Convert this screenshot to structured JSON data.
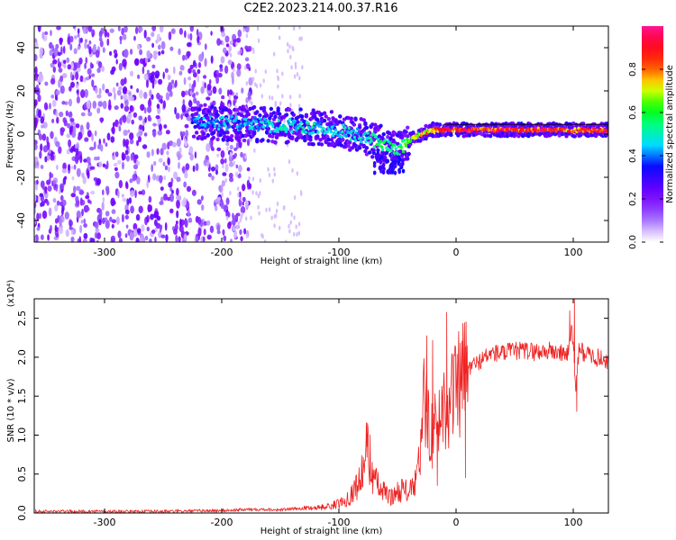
{
  "title": "C2E2.2023.214.00.37.R16",
  "chart_data": [
    {
      "type": "heatmap",
      "xlabel": "Height of straight line (km)",
      "ylabel": "Frequency (Hz)",
      "xlim": [
        -360,
        130
      ],
      "ylim": [
        -50,
        50
      ],
      "xticks": [
        -300,
        -200,
        -100,
        0,
        100
      ],
      "yticks": [
        -40,
        -20,
        0,
        20,
        40
      ],
      "colorbar": {
        "label": "Normalized spectral amplitude",
        "range": [
          0.0,
          1.0
        ],
        "ticks": [
          0.0,
          0.2,
          0.4,
          0.6,
          0.8
        ],
        "colormap": [
          "#ffffff",
          "#7f00ff",
          "#0000ff",
          "#00ffff",
          "#00ff00",
          "#ffff00",
          "#ff0000",
          "#ff1493"
        ]
      },
      "ridge": {
        "x": [
          -225,
          -200,
          -180,
          -160,
          -140,
          -120,
          -100,
          -90,
          -80,
          -70,
          -60,
          -50,
          -45,
          -40,
          -30,
          -20,
          -10,
          0,
          20,
          50,
          90,
          100,
          110,
          130
        ],
        "y": [
          6,
          5,
          5,
          4,
          4,
          3,
          2,
          0,
          -1,
          -3,
          -5,
          -7,
          -6,
          -3,
          0,
          2,
          2,
          2,
          2,
          2,
          2,
          2,
          2,
          2
        ],
        "amplitude": [
          0.4,
          0.45,
          0.45,
          0.5,
          0.5,
          0.5,
          0.45,
          0.5,
          0.5,
          0.55,
          0.55,
          0.55,
          0.6,
          0.65,
          0.75,
          0.85,
          0.9,
          0.9,
          0.92,
          0.92,
          0.92,
          0.85,
          0.92,
          0.92
        ]
      },
      "noise_region_x": [
        -360,
        -195
      ],
      "noise_amplitude": 0.15
    },
    {
      "type": "line",
      "xlabel": "Height of straight line (km)",
      "ylabel": "SNR (10 * v/v)",
      "y_multiplier": "(x10⁴)",
      "xlim": [
        -360,
        130
      ],
      "ylim": [
        0,
        2.75
      ],
      "xticks": [
        -300,
        -200,
        -100,
        0,
        100
      ],
      "yticks": [
        0.0,
        0.5,
        1.0,
        1.5,
        2.0,
        2.5
      ],
      "ytick_labels": [
        "0.0",
        "0.5",
        "1.0",
        "1.5",
        "2.0",
        "2.5"
      ],
      "color": "#ee2222",
      "series": [
        {
          "x": [
            -360,
            -300,
            -250,
            -200,
            -170,
            -150,
            -130,
            -110,
            -100,
            -90,
            -85,
            -80,
            -76,
            -70,
            -65,
            -60,
            -55,
            -50,
            -45,
            -40,
            -35,
            -30,
            -27,
            -25,
            -20,
            -15,
            -10,
            -5,
            0,
            5,
            10,
            20,
            30,
            40,
            50,
            60,
            70,
            80,
            90,
            95,
            98,
            100,
            102,
            105,
            110,
            120,
            130
          ],
          "y": [
            0.02,
            0.02,
            0.02,
            0.03,
            0.05,
            0.04,
            0.06,
            0.08,
            0.12,
            0.22,
            0.35,
            0.5,
            0.85,
            0.45,
            0.3,
            0.25,
            0.2,
            0.28,
            0.3,
            0.28,
            0.35,
            0.8,
            1.5,
            1.3,
            1.0,
            1.2,
            1.4,
            1.5,
            1.55,
            1.7,
            1.85,
            1.95,
            2.05,
            2.05,
            2.08,
            2.08,
            2.07,
            2.08,
            2.05,
            2.05,
            2.3,
            2.25,
            1.6,
            2.1,
            2.05,
            2.0,
            1.95
          ]
        }
      ],
      "spikes": [
        {
          "x": -76,
          "y": 1.02
        },
        {
          "x": -35,
          "y": 0.55
        },
        {
          "x": -25,
          "y": 2.28
        },
        {
          "x": -20,
          "y": 2.22
        },
        {
          "x": -16,
          "y": 0.35
        },
        {
          "x": -8,
          "y": 2.58
        },
        {
          "x": 8,
          "y": 0.45
        },
        {
          "x": 97,
          "y": 2.6
        },
        {
          "x": 101,
          "y": 2.75
        },
        {
          "x": 103,
          "y": 1.3
        }
      ]
    }
  ]
}
